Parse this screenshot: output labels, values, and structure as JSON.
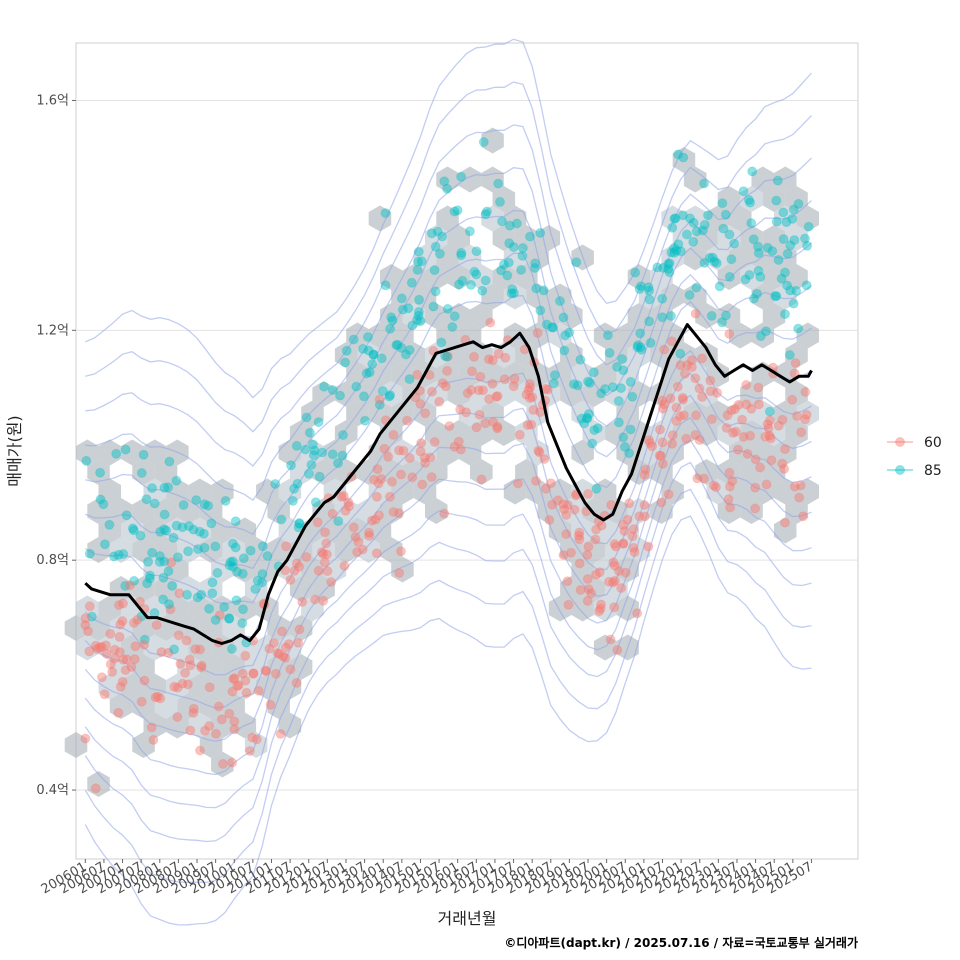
{
  "chart_data": {
    "type": "scatter",
    "xlabel": "거래년월",
    "ylabel": "매매가(원)",
    "caption": "©디아파트(dapt.kr) / 2025.07.16 / 자료=국토교통부 실거래가",
    "x_ticks": [
      "200601",
      "200607",
      "200701",
      "200707",
      "200801",
      "200807",
      "200901",
      "200907",
      "201001",
      "201007",
      "201101",
      "201107",
      "201201",
      "201207",
      "201301",
      "201307",
      "201401",
      "201407",
      "201501",
      "201507",
      "201601",
      "201607",
      "201701",
      "201707",
      "201801",
      "201807",
      "201901",
      "201907",
      "202001",
      "202007",
      "202101",
      "202107",
      "202201",
      "202207",
      "202301",
      "202307",
      "202401",
      "202407",
      "202501",
      "202507"
    ],
    "y_ticks": [
      {
        "value": 0.4,
        "label": "0.4억"
      },
      {
        "value": 0.8,
        "label": "0.8억"
      },
      {
        "value": 1.2,
        "label": "1.2억"
      },
      {
        "value": 1.6,
        "label": "1.6억"
      }
    ],
    "xlim": [
      "200510",
      "202610"
    ],
    "ylim": [
      0.28,
      1.7
    ],
    "grid": true,
    "legend_position": "right",
    "legend": [
      {
        "name": "60",
        "color": "#F8766D"
      },
      {
        "name": "85",
        "color": "#00BFC4"
      }
    ],
    "trend_line": {
      "color": "#000000",
      "points": [
        [
          "200601",
          0.76
        ],
        [
          "200603",
          0.75
        ],
        [
          "200606",
          0.745
        ],
        [
          "200609",
          0.74
        ],
        [
          "200612",
          0.74
        ],
        [
          "200703",
          0.74
        ],
        [
          "200706",
          0.72
        ],
        [
          "200709",
          0.7
        ],
        [
          "200712",
          0.7
        ],
        [
          "200803",
          0.695
        ],
        [
          "200806",
          0.69
        ],
        [
          "200809",
          0.685
        ],
        [
          "200812",
          0.68
        ],
        [
          "200903",
          0.67
        ],
        [
          "200906",
          0.66
        ],
        [
          "200909",
          0.655
        ],
        [
          "200912",
          0.66
        ],
        [
          "201003",
          0.67
        ],
        [
          "201006",
          0.66
        ],
        [
          "201009",
          0.68
        ],
        [
          "201012",
          0.74
        ],
        [
          "201103",
          0.78
        ],
        [
          "201106",
          0.8
        ],
        [
          "201109",
          0.83
        ],
        [
          "201112",
          0.86
        ],
        [
          "201203",
          0.88
        ],
        [
          "201206",
          0.9
        ],
        [
          "201209",
          0.91
        ],
        [
          "201212",
          0.93
        ],
        [
          "201303",
          0.95
        ],
        [
          "201306",
          0.97
        ],
        [
          "201309",
          0.99
        ],
        [
          "201312",
          1.02
        ],
        [
          "201403",
          1.04
        ],
        [
          "201406",
          1.06
        ],
        [
          "201409",
          1.08
        ],
        [
          "201412",
          1.1
        ],
        [
          "201503",
          1.13
        ],
        [
          "201506",
          1.16
        ],
        [
          "201509",
          1.165
        ],
        [
          "201512",
          1.17
        ],
        [
          "201603",
          1.175
        ],
        [
          "201606",
          1.18
        ],
        [
          "201609",
          1.17
        ],
        [
          "201612",
          1.175
        ],
        [
          "201703",
          1.17
        ],
        [
          "201706",
          1.18
        ],
        [
          "201709",
          1.195
        ],
        [
          "201712",
          1.17
        ],
        [
          "201803",
          1.12
        ],
        [
          "201806",
          1.04
        ],
        [
          "201809",
          1.0
        ],
        [
          "201812",
          0.96
        ],
        [
          "201903",
          0.93
        ],
        [
          "201906",
          0.9
        ],
        [
          "201909",
          0.88
        ],
        [
          "201912",
          0.87
        ],
        [
          "202003",
          0.88
        ],
        [
          "202006",
          0.92
        ],
        [
          "202009",
          0.95
        ],
        [
          "202012",
          1.0
        ],
        [
          "202103",
          1.05
        ],
        [
          "202106",
          1.1
        ],
        [
          "202109",
          1.15
        ],
        [
          "202112",
          1.18
        ],
        [
          "202203",
          1.21
        ],
        [
          "202206",
          1.19
        ],
        [
          "202209",
          1.17
        ],
        [
          "202212",
          1.14
        ],
        [
          "202303",
          1.12
        ],
        [
          "202306",
          1.13
        ],
        [
          "202309",
          1.14
        ],
        [
          "202312",
          1.13
        ],
        [
          "202403",
          1.14
        ],
        [
          "202406",
          1.13
        ],
        [
          "202409",
          1.12
        ],
        [
          "202412",
          1.11
        ],
        [
          "202503",
          1.12
        ],
        [
          "202506",
          1.12
        ],
        [
          "202507",
          1.13
        ]
      ]
    }
  }
}
